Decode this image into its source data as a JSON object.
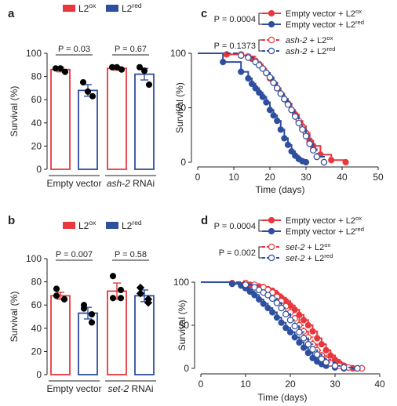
{
  "colors": {
    "ox": "#e8383d",
    "red": "#2e4fa0",
    "text": "#231f20",
    "axis": "#231f20"
  },
  "chart_data": [
    {
      "id": "a",
      "panel_label": "a",
      "type": "bar",
      "ylabel": "Survival (%)",
      "ylim": [
        0,
        100
      ],
      "yticks": [
        "0",
        "20",
        "40",
        "60",
        "80",
        "100"
      ],
      "legend": [
        {
          "base": "L2",
          "sup": "ox",
          "series": "L2ox"
        },
        {
          "base": "L2",
          "sup": "red",
          "series": "L2red"
        }
      ],
      "groups": [
        {
          "label_parts": [
            {
              "t": "Empty vector",
              "i": false
            }
          ],
          "p_value": "P = 0.03",
          "bars": [
            {
              "series": "L2ox",
              "value": 86,
              "err": 2,
              "points": [
                87,
                84,
                87
              ],
              "marker": "circle"
            },
            {
              "series": "L2red",
              "value": 68,
              "err": 5,
              "points": [
                75,
                63,
                67
              ],
              "marker": "circle"
            }
          ]
        },
        {
          "label_parts": [
            {
              "t": "ash-2",
              "i": true
            },
            {
              "t": " RNAi",
              "i": false
            }
          ],
          "p_value": "P = 0.67",
          "bars": [
            {
              "series": "L2ox",
              "value": 87,
              "err": 1.5,
              "points": [
                88,
                86,
                88
              ],
              "marker": "circle"
            },
            {
              "series": "L2red",
              "value": 82,
              "err": 5,
              "points": [
                88,
                73,
                85
              ],
              "marker": "circle"
            }
          ]
        }
      ]
    },
    {
      "id": "b",
      "panel_label": "b",
      "type": "bar",
      "ylabel": "Survival (%)",
      "ylim": [
        0,
        100
      ],
      "yticks": [
        "0",
        "20",
        "40",
        "60",
        "80",
        "100"
      ],
      "legend": [
        {
          "base": "L2",
          "sup": "ox",
          "series": "L2ox"
        },
        {
          "base": "L2",
          "sup": "red",
          "series": "L2red"
        }
      ],
      "groups": [
        {
          "label_parts": [
            {
              "t": "Empty vector",
              "i": false
            }
          ],
          "p_value": "P = 0.007",
          "bars": [
            {
              "series": "L2ox",
              "value": 68,
              "err": 3,
              "points": [
                74,
                65,
                68,
                65
              ],
              "marker": "circle"
            },
            {
              "series": "L2red",
              "value": 53,
              "err": 5,
              "points": [
                57,
                45,
                60,
                52
              ],
              "marker": "circle"
            }
          ]
        },
        {
          "label_parts": [
            {
              "t": "set-2",
              "i": true
            },
            {
              "t": " RNAi",
              "i": false
            }
          ],
          "p_value": "P = 0.58",
          "bars": [
            {
              "series": "L2ox",
              "value": 72,
              "err": 7,
              "points": [
                85,
                66,
                66,
                73
              ],
              "marker": "circle"
            },
            {
              "series": "L2red",
              "value": 68,
              "err": 5,
              "points": [
                75,
                62,
                70,
                65
              ],
              "marker": "diamond"
            }
          ]
        }
      ]
    },
    {
      "id": "c",
      "panel_label": "c",
      "type": "line",
      "xlabel": "Time (days)",
      "ylabel": "Survival (%)",
      "xlim": [
        0,
        50
      ],
      "ylim": [
        0,
        100
      ],
      "xticks": [
        "0",
        "10",
        "20",
        "30",
        "40",
        "50"
      ],
      "yticks": [
        "0",
        "50",
        "100"
      ],
      "stats": [
        {
          "text": "P = 0.0004",
          "pair": [
            0,
            1
          ]
        },
        {
          "text": "P = 0.1373",
          "pair": [
            2,
            3
          ]
        }
      ],
      "series": [
        {
          "name_parts": [
            {
              "t": "Empty vector + L2",
              "i": false
            },
            {
              "t": "ox",
              "sup": true
            }
          ],
          "color_key": "ox",
          "style": "solid",
          "marker": "filled",
          "x": [
            0,
            8,
            12,
            14,
            15,
            16,
            17,
            18,
            19,
            20,
            21,
            22,
            23,
            24,
            25,
            26,
            27,
            28,
            29,
            30,
            31,
            32,
            34,
            37,
            41
          ],
          "y": [
            100,
            99,
            98,
            97,
            95,
            92,
            90,
            86,
            82,
            77,
            73,
            68,
            63,
            58,
            54,
            48,
            44,
            37,
            33,
            27,
            20,
            15,
            7,
            2,
            0
          ]
        },
        {
          "name_parts": [
            {
              "t": "Empty vector + L2",
              "i": false
            },
            {
              "t": "red",
              "sup": true
            }
          ],
          "color_key": "red",
          "style": "solid",
          "marker": "filled",
          "x": [
            0,
            7,
            12,
            14,
            15,
            16,
            17,
            18,
            19,
            20,
            21,
            22,
            23,
            24,
            25,
            26,
            27,
            28,
            29,
            30
          ],
          "y": [
            100,
            92,
            83,
            77,
            72,
            68,
            64,
            60,
            55,
            48,
            43,
            38,
            30,
            22,
            16,
            10,
            6,
            3,
            1,
            0
          ]
        },
        {
          "name_parts": [
            {
              "t": "ash-2",
              "i": true
            },
            {
              "t": " + L2",
              "i": false
            },
            {
              "t": "ox",
              "sup": true
            }
          ],
          "color_key": "ox",
          "style": "dashed",
          "marker": "open",
          "x": [
            0,
            12,
            14,
            16,
            17,
            18,
            19,
            20,
            21,
            22,
            23,
            24,
            25,
            26,
            27,
            28,
            29,
            30,
            31,
            32,
            33,
            35
          ],
          "y": [
            100,
            99,
            97,
            93,
            90,
            86,
            82,
            78,
            73,
            68,
            63,
            58,
            54,
            48,
            43,
            38,
            32,
            26,
            18,
            12,
            5,
            0
          ]
        },
        {
          "name_parts": [
            {
              "t": "ash-2",
              "i": true
            },
            {
              "t": " + L2",
              "i": false
            },
            {
              "t": "red",
              "sup": true
            }
          ],
          "color_key": "red",
          "style": "dashed",
          "marker": "open",
          "x": [
            0,
            12,
            14,
            16,
            17,
            18,
            19,
            20,
            21,
            22,
            23,
            24,
            25,
            26,
            27,
            28,
            29,
            30,
            31,
            32,
            33,
            35
          ],
          "y": [
            100,
            98,
            96,
            92,
            89,
            86,
            82,
            78,
            73,
            68,
            63,
            58,
            53,
            48,
            42,
            36,
            30,
            24,
            17,
            11,
            5,
            0
          ]
        }
      ]
    },
    {
      "id": "d",
      "panel_label": "d",
      "type": "line",
      "xlabel": "Time (days)",
      "ylabel": "Survival (%)",
      "xlim": [
        0,
        40
      ],
      "ylim": [
        0,
        100
      ],
      "xticks": [
        "0",
        "10",
        "20",
        "30",
        "40"
      ],
      "yticks": [
        "0",
        "50",
        "100"
      ],
      "stats": [
        {
          "text": "P = 0.0004",
          "pair": [
            0,
            1
          ]
        },
        {
          "text": "P = 0.002",
          "pair": [
            2,
            3
          ]
        }
      ],
      "series": [
        {
          "name_parts": [
            {
              "t": "Empty vector + L2",
              "i": false
            },
            {
              "t": "ox",
              "sup": true
            }
          ],
          "color_key": "ox",
          "style": "solid",
          "marker": "filled",
          "x": [
            0,
            7,
            11,
            13,
            14,
            15,
            16,
            17,
            18,
            19,
            20,
            21,
            22,
            23,
            24,
            25,
            26,
            27,
            28,
            29,
            30,
            31,
            32,
            34
          ],
          "y": [
            100,
            99,
            97,
            95,
            94,
            92,
            90,
            86,
            82,
            78,
            73,
            68,
            62,
            56,
            50,
            43,
            35,
            28,
            21,
            15,
            10,
            6,
            3,
            0
          ]
        },
        {
          "name_parts": [
            {
              "t": "Empty vector + L2",
              "i": false
            },
            {
              "t": "red",
              "sup": true
            }
          ],
          "color_key": "red",
          "style": "solid",
          "marker": "filled",
          "x": [
            0,
            7,
            9,
            10,
            11,
            12,
            13,
            14,
            15,
            16,
            17,
            18,
            19,
            20,
            21,
            22,
            23,
            24,
            25,
            26,
            27,
            28,
            30,
            32,
            35
          ],
          "y": [
            100,
            98,
            96,
            93,
            89,
            85,
            80,
            75,
            70,
            65,
            59,
            53,
            47,
            42,
            36,
            30,
            24,
            18,
            12,
            8,
            5,
            3,
            1,
            0,
            0
          ]
        },
        {
          "name_parts": [
            {
              "t": "set-2",
              "i": true
            },
            {
              "t": " + L2",
              "i": false
            },
            {
              "t": "ox",
              "sup": true
            }
          ],
          "color_key": "ox",
          "style": "dashed",
          "marker": "open",
          "x": [
            0,
            10,
            12,
            14,
            15,
            16,
            17,
            18,
            19,
            20,
            21,
            22,
            23,
            24,
            25,
            26,
            27,
            28,
            29,
            31,
            33,
            36
          ],
          "y": [
            100,
            99,
            97,
            94,
            91,
            88,
            83,
            78,
            72,
            65,
            58,
            50,
            43,
            36,
            28,
            21,
            15,
            10,
            6,
            3,
            1,
            0
          ]
        },
        {
          "name_parts": [
            {
              "t": "set-2",
              "i": true
            },
            {
              "t": " + L2",
              "i": false
            },
            {
              "t": "red",
              "sup": true
            }
          ],
          "color_key": "red",
          "style": "dashed",
          "marker": "open",
          "x": [
            0,
            10,
            12,
            13,
            14,
            15,
            16,
            17,
            18,
            19,
            20,
            21,
            22,
            23,
            24,
            25,
            26,
            27,
            28,
            30,
            32,
            35
          ],
          "y": [
            100,
            97,
            94,
            91,
            88,
            85,
            81,
            76,
            70,
            63,
            56,
            49,
            42,
            35,
            28,
            22,
            16,
            11,
            7,
            3,
            1,
            0
          ]
        }
      ]
    }
  ]
}
